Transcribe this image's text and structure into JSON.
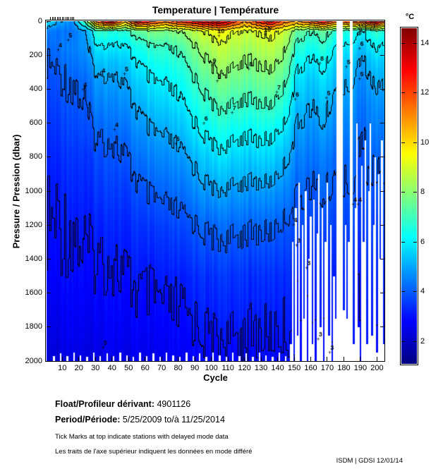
{
  "title": "Temperature | Température",
  "axes": {
    "x_label": "Cycle",
    "y_label": "Pressure / Pression (dbar)",
    "x_ticks": [
      10,
      20,
      30,
      40,
      50,
      60,
      70,
      80,
      90,
      100,
      110,
      120,
      130,
      140,
      150,
      160,
      170,
      180,
      190,
      200
    ],
    "y_ticks": [
      0,
      200,
      400,
      600,
      800,
      1000,
      1200,
      1400,
      1600,
      1800,
      2000
    ]
  },
  "colorbar": {
    "label": "°C",
    "ticks": [
      2,
      4,
      6,
      8,
      10,
      12,
      14
    ],
    "vmin": 1.1,
    "vmax": 14.6
  },
  "chart_data": {
    "type": "heatmap",
    "title": "Temperature | Température",
    "xlabel": "Cycle",
    "ylabel": "Pressure / Pression (dbar)",
    "x_range": [
      0.5,
      204.5
    ],
    "y_range": [
      0,
      2000
    ],
    "colormap": "jet",
    "contour_interval_c": 1,
    "x_cycles": [
      1,
      8,
      16,
      24,
      32,
      40,
      48,
      56,
      64,
      72,
      80,
      88,
      96,
      104,
      112,
      120,
      128,
      136,
      144,
      152,
      160,
      168,
      176,
      184,
      192,
      200,
      204
    ],
    "y_pressures_dbar": [
      0,
      60,
      150,
      250,
      350,
      500,
      650,
      800,
      1000,
      1200,
      1500,
      2000
    ],
    "temperature_c": [
      [
        6.0,
        5.0,
        4.5,
        7.5,
        12.0,
        13.5,
        10.5,
        13.5,
        12.5,
        11.5,
        12.5,
        13.0,
        13.8,
        14.2,
        13.0,
        11.0,
        12.5,
        13.5,
        11.5,
        11.0,
        12.0,
        13.0,
        11.5,
        12.0,
        12.5,
        13.8,
        12.0
      ],
      [
        4.5,
        4.3,
        4.2,
        5.0,
        7.0,
        6.5,
        6.8,
        7.5,
        8.0,
        7.8,
        8.0,
        8.5,
        9.0,
        9.6,
        9.2,
        8.8,
        9.0,
        9.3,
        8.8,
        7.5,
        7.0,
        7.5,
        6.5,
        6.5,
        6.0,
        7.0,
        6.5
      ],
      [
        4.2,
        4.3,
        4.4,
        4.8,
        6.0,
        5.8,
        6.0,
        6.5,
        7.0,
        7.0,
        7.2,
        7.8,
        8.3,
        8.8,
        8.6,
        8.3,
        8.5,
        8.7,
        8.2,
        6.8,
        6.3,
        6.8,
        5.8,
        5.8,
        5.3,
        6.2,
        5.8
      ],
      [
        4.0,
        4.1,
        4.2,
        4.5,
        5.4,
        5.2,
        5.5,
        6.0,
        6.4,
        6.5,
        6.7,
        7.2,
        7.8,
        8.3,
        8.2,
        7.9,
        8.0,
        8.2,
        7.7,
        6.2,
        5.8,
        6.2,
        5.3,
        5.3,
        4.9,
        5.6,
        5.3
      ],
      [
        3.8,
        3.9,
        4.0,
        4.2,
        4.9,
        4.8,
        5.1,
        5.6,
        6.0,
        6.1,
        6.3,
        6.8,
        7.3,
        7.8,
        7.7,
        7.4,
        7.6,
        7.7,
        7.2,
        5.8,
        5.4,
        5.8,
        5.0,
        5.0,
        4.6,
        5.2,
        5.0
      ],
      [
        3.6,
        3.7,
        3.8,
        4.0,
        4.5,
        4.4,
        4.7,
        5.1,
        5.5,
        5.6,
        5.8,
        6.2,
        6.7,
        7.1,
        7.0,
        6.8,
        6.9,
        7.0,
        6.5,
        5.3,
        5.0,
        5.3,
        4.6,
        4.7,
        4.3,
        4.8,
        4.6
      ],
      [
        3.4,
        3.5,
        3.6,
        3.8,
        4.1,
        4.1,
        4.3,
        4.7,
        5.0,
        5.1,
        5.3,
        5.7,
        6.1,
        6.4,
        6.3,
        6.1,
        6.2,
        6.2,
        5.8,
        4.9,
        4.6,
        4.9,
        4.3,
        4.4,
        4.1,
        4.5,
        4.3
      ],
      [
        3.3,
        3.3,
        3.4,
        3.5,
        3.8,
        3.8,
        4.0,
        4.3,
        4.6,
        4.7,
        4.8,
        5.1,
        5.5,
        5.8,
        5.7,
        5.5,
        5.6,
        5.6,
        5.2,
        4.5,
        4.3,
        4.5,
        4.0,
        4.1,
        3.9,
        4.2,
        4.0
      ],
      [
        3.1,
        3.1,
        3.2,
        3.3,
        3.5,
        3.5,
        3.6,
        3.9,
        4.1,
        4.2,
        4.3,
        4.5,
        4.8,
        5.0,
        4.9,
        4.8,
        4.8,
        4.8,
        4.5,
        4.1,
        3.9,
        4.1,
        3.8,
        3.9,
        3.7,
        3.9,
        3.8
      ],
      [
        3.0,
        3.0,
        3.0,
        3.1,
        3.2,
        3.2,
        3.3,
        3.5,
        3.6,
        3.7,
        3.8,
        3.9,
        4.1,
        4.2,
        4.2,
        4.1,
        4.1,
        4.1,
        3.9,
        3.7,
        3.6,
        3.7,
        3.5,
        3.6,
        3.5,
        3.6,
        3.5
      ],
      [
        2.8,
        2.8,
        2.8,
        2.9,
        2.9,
        2.9,
        3.0,
        3.1,
        3.1,
        3.2,
        3.2,
        3.3,
        3.4,
        3.5,
        3.5,
        3.4,
        3.4,
        3.4,
        3.3,
        3.2,
        3.2,
        3.2,
        3.1,
        3.2,
        3.1,
        3.2,
        3.1
      ],
      [
        2.3,
        2.3,
        2.4,
        2.4,
        2.4,
        2.5,
        2.5,
        2.6,
        2.6,
        2.6,
        2.7,
        2.7,
        2.8,
        2.8,
        2.8,
        2.8,
        2.8,
        2.8,
        2.8,
        2.8,
        2.8,
        2.8,
        2.8,
        2.8,
        2.8,
        2.8,
        2.8
      ]
    ],
    "missing": {
      "default_max_pressure": 2000,
      "max_pressure_entries": [
        [
          5,
          1970
        ],
        [
          9,
          1955
        ],
        [
          13,
          1970
        ],
        [
          17,
          1950
        ],
        [
          21,
          1965
        ],
        [
          25,
          1975
        ],
        [
          29,
          1950
        ],
        [
          33,
          1970
        ],
        [
          37,
          1955
        ],
        [
          41,
          1970
        ],
        [
          45,
          1950
        ],
        [
          49,
          1965
        ],
        [
          53,
          1975
        ],
        [
          57,
          1950
        ],
        [
          61,
          1970
        ],
        [
          65,
          1955
        ],
        [
          69,
          1975
        ],
        [
          73,
          1950
        ],
        [
          77,
          1965
        ],
        [
          81,
          1975
        ],
        [
          85,
          1950
        ],
        [
          89,
          1970
        ],
        [
          93,
          1955
        ],
        [
          97,
          1975
        ],
        [
          101,
          1950
        ],
        [
          105,
          1965
        ],
        [
          109,
          1975
        ],
        [
          113,
          1950
        ],
        [
          117,
          1970
        ],
        [
          121,
          1955
        ],
        [
          125,
          1975
        ],
        [
          129,
          1950
        ],
        [
          133,
          1965
        ],
        [
          137,
          1975
        ],
        [
          141,
          1950
        ],
        [
          145,
          1970
        ],
        [
          148,
          1900
        ],
        [
          149,
          1300
        ],
        [
          151,
          1100
        ],
        [
          152,
          1850
        ],
        [
          153,
          950
        ],
        [
          155,
          1200
        ],
        [
          156,
          1750
        ],
        [
          157,
          1000
        ],
        [
          159,
          1400
        ],
        [
          160,
          1150
        ],
        [
          161,
          1900
        ],
        [
          162,
          1050
        ],
        [
          164,
          1250
        ],
        [
          165,
          900
        ],
        [
          166,
          1800
        ],
        [
          167,
          1100
        ],
        [
          169,
          1300
        ],
        [
          170,
          950
        ],
        [
          171,
          1850
        ],
        [
          172,
          1200
        ],
        [
          174,
          1500
        ],
        [
          175,
          1750
        ],
        [
          176,
          0
        ],
        [
          177,
          0
        ],
        [
          178,
          0
        ],
        [
          179,
          0
        ],
        [
          180,
          1700
        ],
        [
          181,
          1200
        ],
        [
          182,
          1750
        ],
        [
          183,
          1300
        ],
        [
          184,
          0
        ],
        [
          185,
          0
        ],
        [
          186,
          1900
        ],
        [
          187,
          1100
        ],
        [
          188,
          600
        ],
        [
          189,
          1800
        ],
        [
          191,
          850
        ],
        [
          192,
          1300
        ],
        [
          193,
          700
        ],
        [
          194,
          1900
        ],
        [
          195,
          1000
        ],
        [
          196,
          600
        ],
        [
          197,
          1850
        ],
        [
          198,
          1200
        ],
        [
          199,
          800
        ],
        [
          200,
          1950
        ],
        [
          201,
          900
        ],
        [
          202,
          1400
        ],
        [
          203,
          700
        ],
        [
          204,
          1900
        ]
      ]
    },
    "contour_labels": [
      {
        "t": 4,
        "cycle": 8,
        "pressure": 150
      },
      {
        "t": 5,
        "cycle": 14,
        "pressure": 90
      },
      {
        "t": 4,
        "cycle": 23,
        "pressure": 380
      },
      {
        "t": 4,
        "cycle": 34,
        "pressure": 300
      },
      {
        "t": 5,
        "cycle": 48,
        "pressure": 290
      },
      {
        "t": 4,
        "cycle": 42,
        "pressure": 620
      },
      {
        "t": 5,
        "cycle": 79,
        "pressure": 700
      },
      {
        "t": 3,
        "cycle": 35,
        "pressure": 1900
      },
      {
        "t": 9,
        "cycle": 101,
        "pressure": 240
      },
      {
        "t": 10,
        "cycle": 105,
        "pressure": 65
      },
      {
        "t": 10,
        "cycle": 133,
        "pressure": 60
      },
      {
        "t": 8,
        "cycle": 104,
        "pressure": 330
      },
      {
        "t": 7,
        "cycle": 113,
        "pressure": 520
      },
      {
        "t": 8,
        "cycle": 123,
        "pressure": 260
      },
      {
        "t": 6,
        "cycle": 96,
        "pressure": 580
      },
      {
        "t": 7,
        "cycle": 140,
        "pressure": 400
      },
      {
        "t": 6,
        "cycle": 151,
        "pressure": 440
      },
      {
        "t": 5,
        "cycle": 170,
        "pressure": 430
      },
      {
        "t": 8,
        "cycle": 166,
        "pressure": 230
      },
      {
        "t": 9,
        "cycle": 189,
        "pressure": 60
      },
      {
        "t": 6,
        "cycle": 190,
        "pressure": 140
      },
      {
        "t": 5,
        "cycle": 190,
        "pressure": 320
      },
      {
        "t": 5,
        "cycle": 182,
        "pressure": 250
      },
      {
        "t": 4,
        "cycle": 150,
        "pressure": 1180
      },
      {
        "t": 4,
        "cycle": 186,
        "pressure": 1060
      },
      {
        "t": 4,
        "cycle": 189,
        "pressure": 1060
      },
      {
        "t": 3,
        "cycle": 152,
        "pressure": 1300
      },
      {
        "t": 3,
        "cycle": 158,
        "pressure": 1430
      },
      {
        "t": 3,
        "cycle": 165,
        "pressure": 1850
      },
      {
        "t": 3,
        "cycle": 172,
        "pressure": 1930
      }
    ],
    "delayed_mode_tick_cycles": [
      3,
      4,
      5,
      6,
      7,
      8,
      9,
      10,
      11,
      12,
      13,
      14,
      15,
      16,
      17
    ]
  },
  "footer": {
    "float_label": "Float/Profileur dérivant:",
    "float_value": " 4901126",
    "period_label": "Period/Période:",
    "period_value": " 5/25/2009 to/à 11/25/2014",
    "note_en": "Tick Marks at top indicate stations with delayed mode data",
    "note_fr": "Les traits de l'axe supérieur indiquent les données en mode différé",
    "credit": "ISDM | GDSI  12/01/14"
  }
}
